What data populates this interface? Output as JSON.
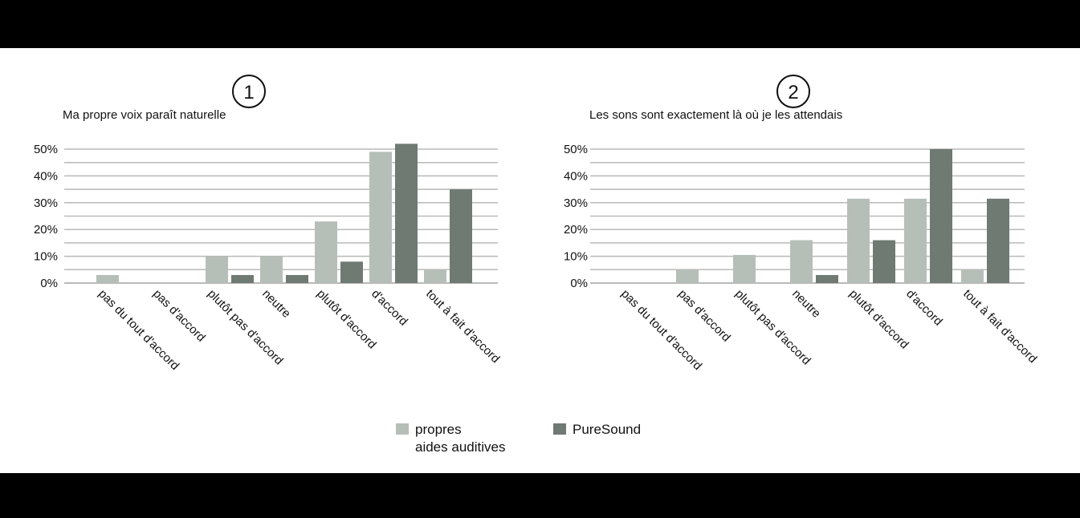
{
  "colors": {
    "propres": "#b6beb8",
    "puresound": "#6e7a72",
    "grid": "#b9b9b9"
  },
  "legend": {
    "propres_label": "propres\naides auditives",
    "puresound_label": "PureSound"
  },
  "chart_data": [
    {
      "type": "bar",
      "badge": "1",
      "title": "Ma propre voix paraît naturelle",
      "categories": [
        "pas du tout d'accord",
        "pas d'accord",
        "plutôt pas d'accord",
        "neutre",
        "plutôt d'accord",
        "d'accord",
        "tout à fait d'accord"
      ],
      "series": [
        {
          "name": "propres aides auditives",
          "values": [
            3,
            0,
            10,
            10,
            23,
            49,
            5
          ]
        },
        {
          "name": "PureSound",
          "values": [
            0,
            0,
            3,
            3,
            8,
            52,
            35
          ]
        }
      ],
      "yticks": [
        "0%",
        "10%",
        "20%",
        "30%",
        "40%",
        "50%"
      ],
      "ylim": [
        0,
        50
      ],
      "grid": true
    },
    {
      "type": "bar",
      "badge": "2",
      "title": "Les sons sont exactement là où je les attendais",
      "categories": [
        "pas du tout d'accord",
        "pas d'accord",
        "plutôt pas d'accord",
        "neutre",
        "plutôt d'accord",
        "d'accord",
        "tout à fait d'accord"
      ],
      "series": [
        {
          "name": "propres aides auditives",
          "values": [
            0,
            5,
            10.5,
            16,
            31.5,
            31.5,
            5
          ]
        },
        {
          "name": "PureSound",
          "values": [
            0,
            0,
            0,
            3,
            16,
            50,
            31.5
          ]
        }
      ],
      "yticks": [
        "0%",
        "10%",
        "20%",
        "30%",
        "40%",
        "50%"
      ],
      "ylim": [
        0,
        50
      ],
      "grid": true
    }
  ]
}
